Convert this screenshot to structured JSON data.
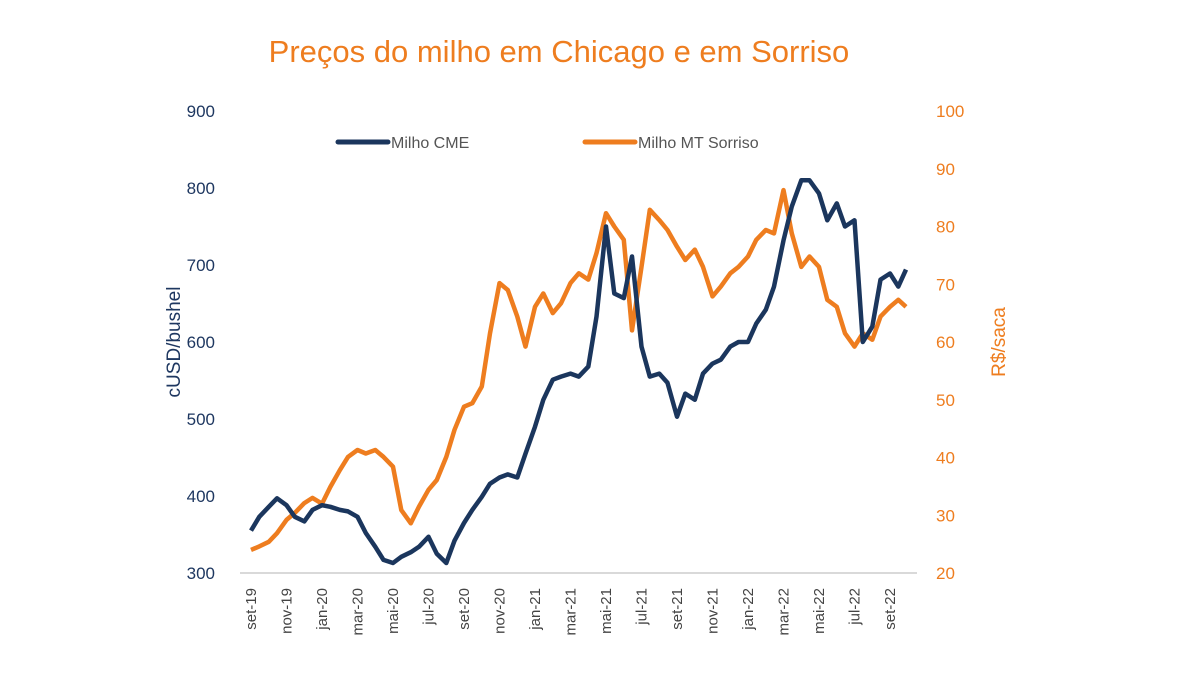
{
  "chart_data": {
    "type": "line",
    "title": "Preços do milho em Chicago e em Sorriso",
    "ylabel_left": "cUSD/bushel",
    "ylabel_right": "R$/saca",
    "ylim_left": [
      300,
      900
    ],
    "ylim_right": [
      20,
      100
    ],
    "yticks_left": [
      "900",
      "800",
      "700",
      "600",
      "500",
      "400",
      "300"
    ],
    "yticks_right": [
      "100",
      "90",
      "80",
      "70",
      "60",
      "50",
      "40",
      "30",
      "20"
    ],
    "xticks": [
      "set-19",
      "nov-19",
      "jan-20",
      "mar-20",
      "mai-20",
      "jul-20",
      "set-20",
      "nov-20",
      "jan-21",
      "mar-21",
      "mai-21",
      "jul-21",
      "set-21",
      "nov-21",
      "jan-22",
      "mar-22",
      "mai-22",
      "jul-22",
      "set-22"
    ],
    "legend_placement": "top",
    "grid": false,
    "colors": {
      "cme": "#1B365D",
      "sorriso": "#EE7D1F"
    },
    "x": [
      "2019-09-01",
      "2019-09-15",
      "2019-10-01",
      "2019-10-15",
      "2019-11-01",
      "2019-11-15",
      "2019-12-01",
      "2019-12-15",
      "2020-01-01",
      "2020-01-15",
      "2020-02-01",
      "2020-02-15",
      "2020-03-01",
      "2020-03-15",
      "2020-04-01",
      "2020-04-15",
      "2020-05-01",
      "2020-05-15",
      "2020-06-01",
      "2020-06-15",
      "2020-07-01",
      "2020-07-15",
      "2020-08-01",
      "2020-08-15",
      "2020-09-01",
      "2020-09-15",
      "2020-10-01",
      "2020-10-15",
      "2020-11-01",
      "2020-11-15",
      "2020-12-01",
      "2020-12-15",
      "2021-01-01",
      "2021-01-15",
      "2021-02-01",
      "2021-02-15",
      "2021-03-01",
      "2021-03-15",
      "2021-04-01",
      "2021-04-15",
      "2021-05-01",
      "2021-05-15",
      "2021-06-01",
      "2021-06-15",
      "2021-07-01",
      "2021-07-15",
      "2021-08-01",
      "2021-08-15",
      "2021-09-01",
      "2021-09-15",
      "2021-10-01",
      "2021-10-15",
      "2021-11-01",
      "2021-11-15",
      "2021-12-01",
      "2021-12-15",
      "2022-01-01",
      "2022-01-15",
      "2022-02-01",
      "2022-02-15",
      "2022-03-01",
      "2022-03-15",
      "2022-04-01",
      "2022-04-15",
      "2022-05-01",
      "2022-05-15",
      "2022-06-01",
      "2022-06-15",
      "2022-07-01",
      "2022-07-15",
      "2022-08-01",
      "2022-08-15",
      "2022-09-01",
      "2022-09-15",
      "2022-09-28"
    ],
    "series": [
      {
        "name": "Milho CME",
        "axis": "left",
        "values": [
          355,
          373,
          386,
          397,
          388,
          373,
          367,
          382,
          388,
          386,
          382,
          380,
          373,
          352,
          334,
          317,
          313,
          321,
          327,
          334,
          347,
          325,
          313,
          342,
          365,
          382,
          399,
          416,
          424,
          428,
          424,
          455,
          490,
          525,
          551,
          555,
          559,
          555,
          568,
          633,
          750,
          663,
          657,
          711,
          594,
          555,
          559,
          547,
          503,
          533,
          525,
          559,
          572,
          577,
          594,
          600,
          600,
          624,
          642,
          672,
          732,
          776,
          810,
          810,
          793,
          758,
          780,
          750,
          758,
          600,
          620,
          681,
          689,
          672,
          694
        ]
      },
      {
        "name": "Milho MT Sorriso",
        "axis": "right",
        "values": [
          24,
          24.6,
          25.4,
          26.9,
          29.2,
          30.4,
          32.1,
          33,
          32,
          34.9,
          37.8,
          40.1,
          41.3,
          40.7,
          41.3,
          40.1,
          38.4,
          30.9,
          28.6,
          31.5,
          34.4,
          36.1,
          40.1,
          44.8,
          48.8,
          49.4,
          52.3,
          61.5,
          70.2,
          69,
          64.4,
          59.2,
          66.1,
          68.4,
          65,
          66.7,
          70.2,
          71.9,
          70.8,
          75.4,
          82.3,
          80,
          77.7,
          62,
          73,
          82.9,
          81.1,
          79.4,
          76.5,
          74.2,
          76,
          73,
          67.9,
          69.6,
          71.9,
          73,
          74.8,
          77.7,
          79.4,
          78.8,
          86.3,
          78.8,
          73,
          74.8,
          73,
          67.3,
          66.1,
          61.5,
          59.2,
          61.5,
          60.4,
          64.4,
          66.1,
          67.3,
          66.1
        ]
      }
    ]
  }
}
